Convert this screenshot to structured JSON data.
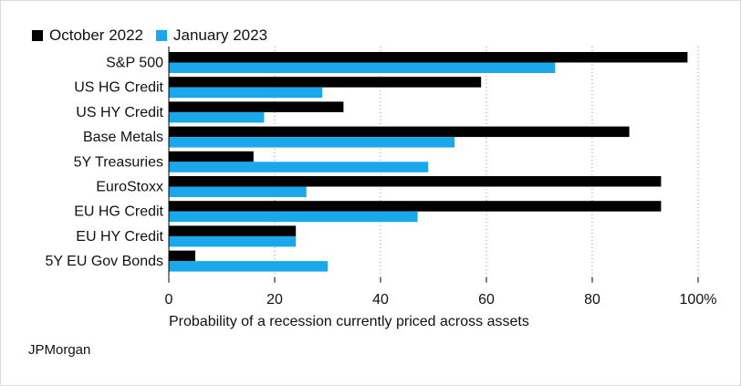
{
  "legend": [
    {
      "label": "October 2022",
      "color": "#000000"
    },
    {
      "label": "January 2023",
      "color": "#1aa7ec"
    }
  ],
  "source": "JPMorgan",
  "chart_data": {
    "type": "bar",
    "orientation": "horizontal",
    "categories": [
      "S&P 500",
      "US HG Credit",
      "US HY Credit",
      "Base Metals",
      "5Y Treasuries",
      "EuroStoxx",
      "EU HG Credit",
      "EU HY Credit",
      "5Y EU Gov Bonds"
    ],
    "series": [
      {
        "name": "October 2022",
        "color": "#000000",
        "values": [
          98,
          59,
          33,
          87,
          16,
          93,
          93,
          24,
          5
        ]
      },
      {
        "name": "January 2023",
        "color": "#1aa7ec",
        "values": [
          73,
          29,
          18,
          54,
          49,
          26,
          47,
          24,
          30
        ]
      }
    ],
    "xlabel": "Probability of a recession currently priced across assets",
    "xlim": [
      0,
      100
    ],
    "xticks": [
      0,
      20,
      40,
      60,
      80,
      100
    ],
    "xtick_labels": [
      "0",
      "20",
      "40",
      "60",
      "80",
      "100%"
    ],
    "grid": true,
    "legend_position": "top-left"
  }
}
